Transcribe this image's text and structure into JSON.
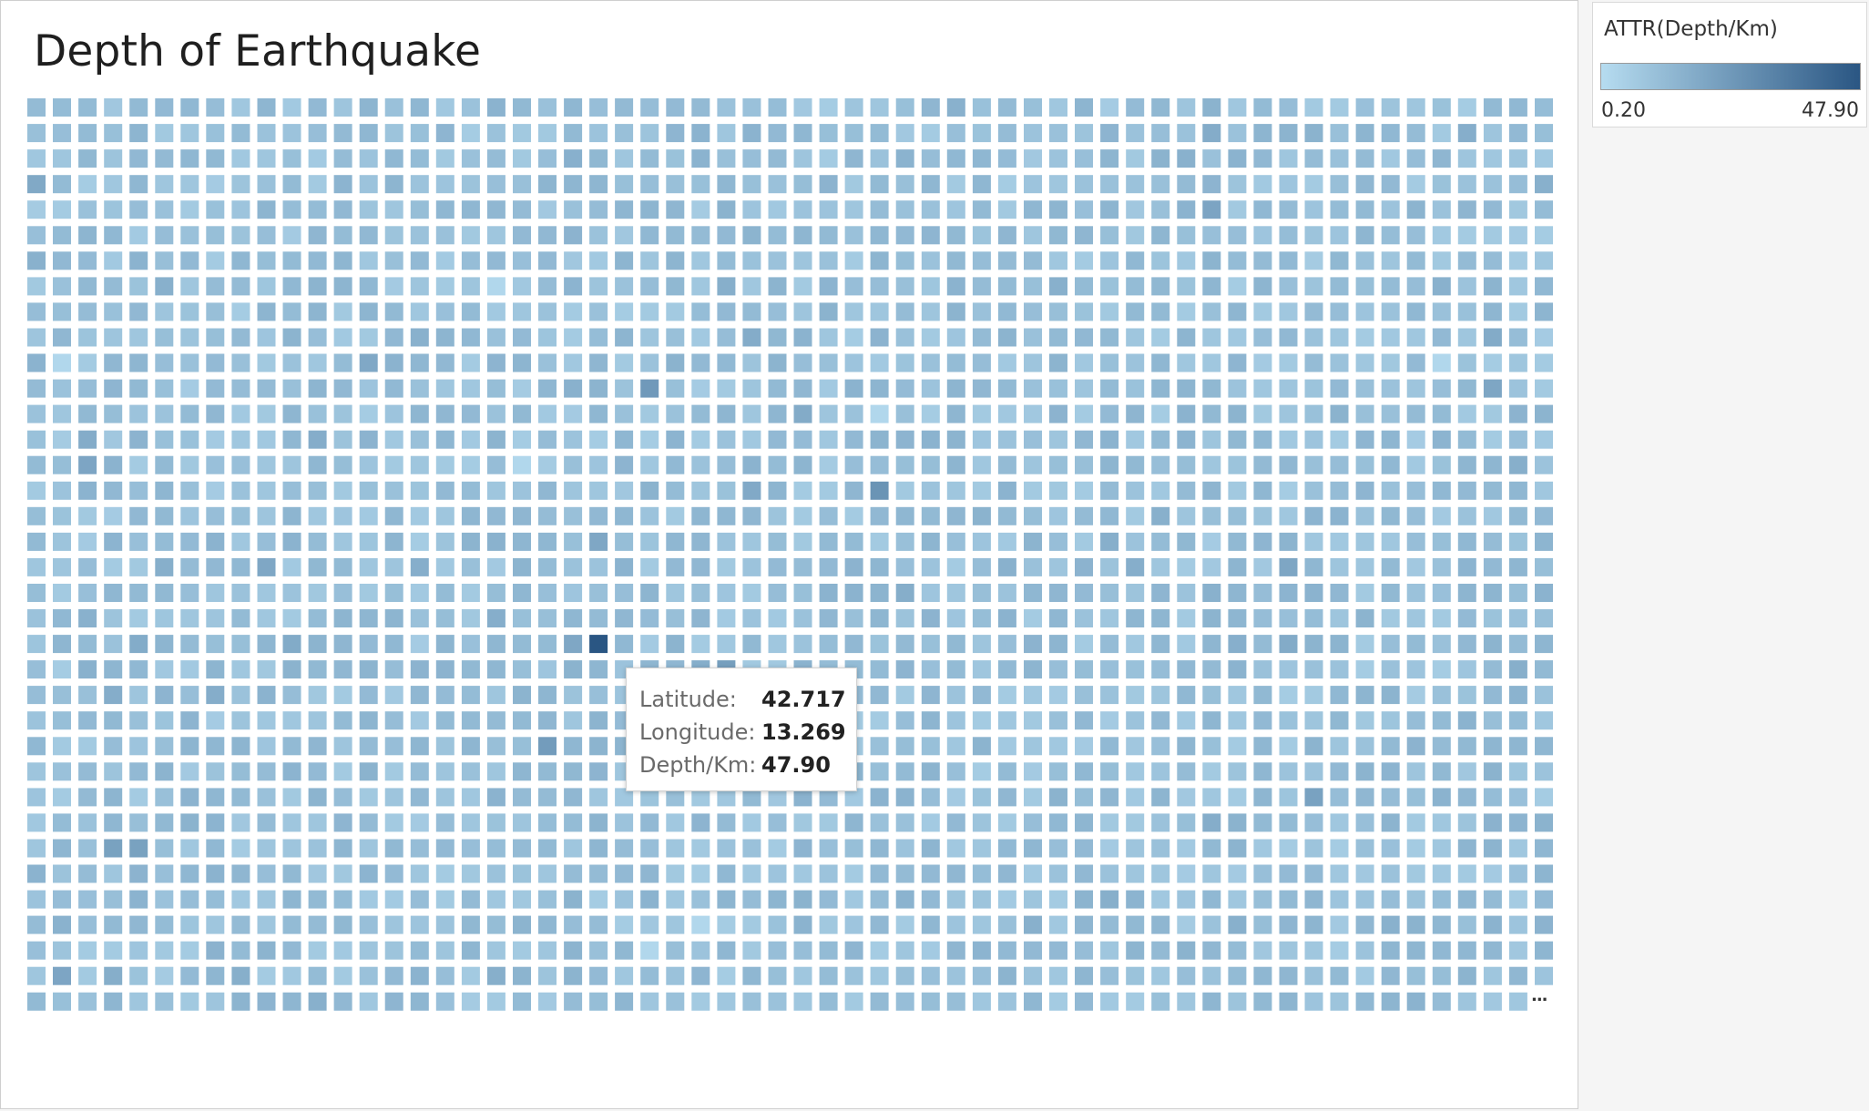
{
  "title": "Depth of Earthquake",
  "chart_data": {
    "type": "heatmap",
    "title": "Depth of Earthquake",
    "rows": 36,
    "cols": 60,
    "measure": "ATTR(Depth/Km)",
    "range": [
      0.2,
      47.9
    ],
    "typical_value": 10,
    "highlight_cells": [
      {
        "row": 21,
        "col": 22,
        "value": 47.9
      },
      {
        "row": 15,
        "col": 33,
        "value": 26
      },
      {
        "row": 11,
        "col": 24,
        "value": 24
      },
      {
        "row": 22,
        "col": 27,
        "value": 22
      },
      {
        "row": 25,
        "col": 20,
        "value": 23
      },
      {
        "row": 29,
        "col": 3,
        "value": 21
      },
      {
        "row": 29,
        "col": 4,
        "value": 21
      }
    ],
    "light_cells": [
      {
        "row": 12,
        "col": 33,
        "value": 2
      },
      {
        "row": 14,
        "col": 19,
        "value": 2
      },
      {
        "row": 7,
        "col": 18,
        "value": 2
      },
      {
        "row": 10,
        "col": 1,
        "value": 2
      },
      {
        "row": 32,
        "col": 26,
        "value": 2
      },
      {
        "row": 33,
        "col": 24,
        "value": 2
      },
      {
        "row": 10,
        "col": 55,
        "value": 2
      }
    ]
  },
  "legend": {
    "title": "ATTR(Depth/Km)",
    "min_label": "0.20",
    "max_label": "47.90",
    "color_low": "#b6dcf0",
    "color_high": "#2a5683"
  },
  "tooltip": {
    "latitude_label": "Latitude:",
    "latitude_value": "42.717",
    "longitude_label": "Longitude:",
    "longitude_value": "13.269",
    "depth_label": "Depth/Km:",
    "depth_value": "47.90"
  },
  "overflow_marker": "..."
}
